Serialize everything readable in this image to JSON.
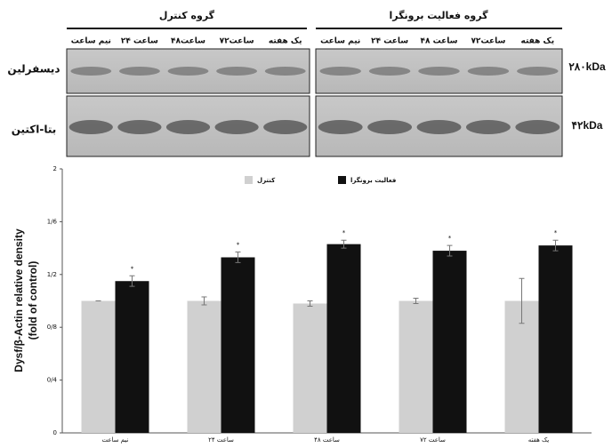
{
  "blot": {
    "groups": [
      {
        "title": "گروه کنترل",
        "lanes": [
          "نیم ساعت",
          "۲۴ ساعت",
          "۴۸ساعت",
          "۷۲ساعت",
          "یک هفته"
        ]
      },
      {
        "title": "گروه فعالیت برونگرا",
        "lanes": [
          "نیم ساعت",
          "۲۴ ساعت",
          "۴۸ ساعت",
          "۷۲ساعت",
          "یک هفته"
        ]
      }
    ],
    "rows": [
      {
        "label": "دیسفرلین",
        "size": "۲۸۰kDa"
      },
      {
        "label": "بتا-اکتین",
        "size": "۴۲kDa"
      }
    ]
  },
  "chart_data": {
    "type": "bar",
    "ylabel": [
      "Dysf/β-Actin relative density",
      "(fold of control)"
    ],
    "categories": [
      "نیم ساعت",
      "۲۴ ساعت",
      "۴۸ ساعت",
      "۷۲ ساعت",
      "یک هفته"
    ],
    "series": [
      {
        "name": "کنترل",
        "color": "#d0d0d0",
        "values": [
          1.0,
          1.0,
          0.98,
          1.0,
          1.0
        ],
        "errors": [
          0.0,
          0.03,
          0.02,
          0.02,
          0.17
        ]
      },
      {
        "name": "فعالیت برونگرا",
        "color": "#111111",
        "values": [
          1.15,
          1.33,
          1.43,
          1.38,
          1.42
        ],
        "errors": [
          0.04,
          0.04,
          0.03,
          0.04,
          0.04
        ],
        "significance": [
          "*",
          "*",
          "*",
          "*",
          "*"
        ]
      }
    ],
    "ylim": [
      0,
      2
    ],
    "yticks": [
      0,
      {
        "value": 0.4,
        "label": "0/4"
      },
      {
        "value": 0.8,
        "label": "0/8"
      },
      {
        "value": 1.2,
        "label": "1/2"
      },
      {
        "value": 1.6,
        "label": "1/6"
      },
      2
    ]
  }
}
